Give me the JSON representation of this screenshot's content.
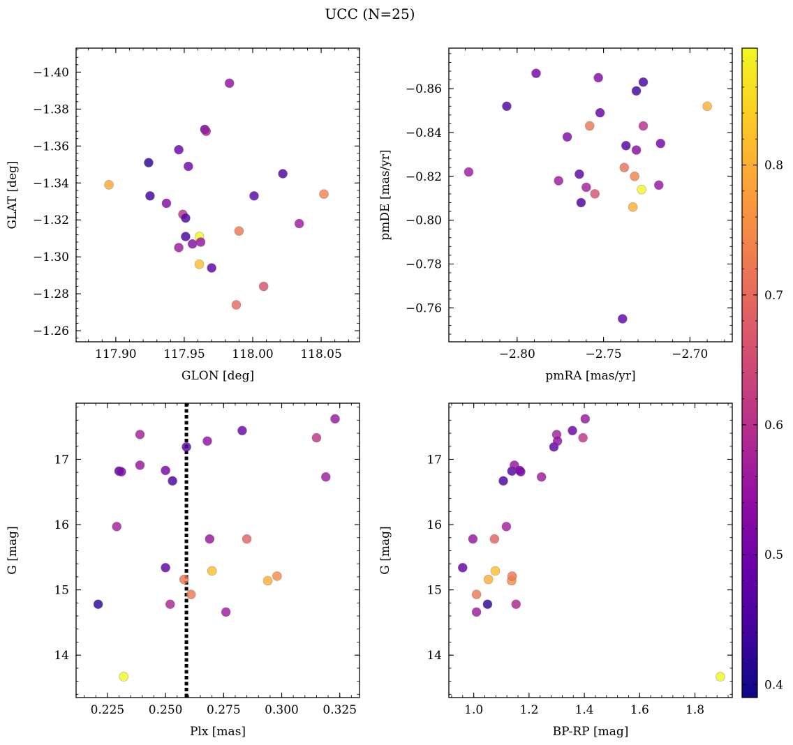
{
  "figure": {
    "title": "UCC (N=25)"
  },
  "colorbar": {
    "colormap": "plasma",
    "range": [
      0.39,
      0.89
    ],
    "ticks": [
      0.4,
      0.5,
      0.6,
      0.7,
      0.8
    ],
    "tick_labels": [
      "0.4",
      "0.5",
      "0.6",
      "0.7",
      "0.8"
    ]
  },
  "chart_data": [
    {
      "type": "scatter",
      "panel": "top-left",
      "xlabel": "GLON [deg]",
      "ylabel": "GLAT [deg]",
      "xlim": [
        117.871,
        118.078
      ],
      "ylim": [
        -1.413,
        -1.254
      ],
      "xticks": [
        117.9,
        117.95,
        118.0,
        118.05
      ],
      "xtick_labels": [
        "117.90",
        "117.95",
        "118.00",
        "118.05"
      ],
      "yticks": [
        -1.4,
        -1.38,
        -1.36,
        -1.34,
        -1.32,
        -1.3,
        -1.28,
        -1.26
      ],
      "ytick_labels": [
        "−1.40",
        "−1.38",
        "−1.36",
        "−1.34",
        "−1.32",
        "−1.30",
        "−1.28",
        "−1.26"
      ],
      "points": [
        {
          "x": 117.895,
          "y": -1.339,
          "c": 0.79
        },
        {
          "x": 117.924,
          "y": -1.351,
          "c": 0.42
        },
        {
          "x": 117.925,
          "y": -1.333,
          "c": 0.44
        },
        {
          "x": 117.937,
          "y": -1.329,
          "c": 0.52
        },
        {
          "x": 117.946,
          "y": -1.305,
          "c": 0.56
        },
        {
          "x": 117.946,
          "y": -1.358,
          "c": 0.49
        },
        {
          "x": 117.949,
          "y": -1.323,
          "c": 0.6
        },
        {
          "x": 117.951,
          "y": -1.321,
          "c": 0.46
        },
        {
          "x": 117.951,
          "y": -1.311,
          "c": 0.45
        },
        {
          "x": 117.953,
          "y": -1.349,
          "c": 0.5
        },
        {
          "x": 117.956,
          "y": -1.307,
          "c": 0.53
        },
        {
          "x": 117.961,
          "y": -1.296,
          "c": 0.82
        },
        {
          "x": 117.961,
          "y": -1.311,
          "c": 0.89
        },
        {
          "x": 117.962,
          "y": -1.308,
          "c": 0.55
        },
        {
          "x": 117.965,
          "y": -1.369,
          "c": 0.48
        },
        {
          "x": 117.966,
          "y": -1.368,
          "c": 0.57
        },
        {
          "x": 117.97,
          "y": -1.294,
          "c": 0.47
        },
        {
          "x": 117.983,
          "y": -1.394,
          "c": 0.54
        },
        {
          "x": 117.988,
          "y": -1.274,
          "c": 0.7
        },
        {
          "x": 117.99,
          "y": -1.314,
          "c": 0.72
        },
        {
          "x": 118.001,
          "y": -1.333,
          "c": 0.47
        },
        {
          "x": 118.008,
          "y": -1.284,
          "c": 0.66
        },
        {
          "x": 118.022,
          "y": -1.345,
          "c": 0.46
        },
        {
          "x": 118.034,
          "y": -1.318,
          "c": 0.56
        },
        {
          "x": 118.052,
          "y": -1.334,
          "c": 0.74
        }
      ]
    },
    {
      "type": "scatter",
      "panel": "top-right",
      "xlabel": "pmRA [mas/yr]",
      "ylabel": "pmDE [mas/yr]",
      "xlim": [
        -2.8395,
        -2.6755
      ],
      "ylim": [
        -0.8785,
        -0.7445
      ],
      "xticks": [
        -2.8,
        -2.75,
        -2.7
      ],
      "xtick_labels": [
        "−2.80",
        "−2.75",
        "−2.70"
      ],
      "yticks": [
        -0.86,
        -0.84,
        -0.82,
        -0.8,
        -0.78,
        -0.76
      ],
      "ytick_labels": [
        "−0.86",
        "−0.84",
        "−0.82",
        "−0.80",
        "−0.78",
        "−0.76"
      ],
      "points": [
        {
          "x": -2.828,
          "y": -0.822,
          "c": 0.56
        },
        {
          "x": -2.806,
          "y": -0.852,
          "c": 0.46
        },
        {
          "x": -2.789,
          "y": -0.867,
          "c": 0.5
        },
        {
          "x": -2.776,
          "y": -0.818,
          "c": 0.56
        },
        {
          "x": -2.771,
          "y": -0.838,
          "c": 0.52
        },
        {
          "x": -2.764,
          "y": -0.821,
          "c": 0.47
        },
        {
          "x": -2.763,
          "y": -0.808,
          "c": 0.45
        },
        {
          "x": -2.76,
          "y": -0.815,
          "c": 0.57
        },
        {
          "x": -2.758,
          "y": -0.843,
          "c": 0.72
        },
        {
          "x": -2.755,
          "y": -0.812,
          "c": 0.66
        },
        {
          "x": -2.753,
          "y": -0.865,
          "c": 0.52
        },
        {
          "x": -2.752,
          "y": -0.849,
          "c": 0.48
        },
        {
          "x": -2.739,
          "y": -0.755,
          "c": 0.48
        },
        {
          "x": -2.738,
          "y": -0.824,
          "c": 0.71
        },
        {
          "x": -2.737,
          "y": -0.834,
          "c": 0.46
        },
        {
          "x": -2.733,
          "y": -0.806,
          "c": 0.8
        },
        {
          "x": -2.732,
          "y": -0.82,
          "c": 0.74
        },
        {
          "x": -2.731,
          "y": -0.832,
          "c": 0.53
        },
        {
          "x": -2.731,
          "y": -0.859,
          "c": 0.44
        },
        {
          "x": -2.728,
          "y": -0.814,
          "c": 0.89
        },
        {
          "x": -2.727,
          "y": -0.843,
          "c": 0.6
        },
        {
          "x": -2.727,
          "y": -0.863,
          "c": 0.45
        },
        {
          "x": -2.718,
          "y": -0.816,
          "c": 0.55
        },
        {
          "x": -2.717,
          "y": -0.835,
          "c": 0.5
        },
        {
          "x": -2.69,
          "y": -0.852,
          "c": 0.8
        }
      ]
    },
    {
      "type": "scatter",
      "panel": "bottom-left",
      "xlabel": "Plx [mas]",
      "ylabel": "G [mag]",
      "xlim": [
        0.2115,
        0.3335
      ],
      "ylim": [
        17.86,
        13.35
      ],
      "xticks": [
        0.225,
        0.25,
        0.275,
        0.3,
        0.325
      ],
      "xtick_labels": [
        "0.225",
        "0.250",
        "0.275",
        "0.300",
        "0.325"
      ],
      "yticks": [
        14,
        15,
        16,
        17
      ],
      "ytick_labels": [
        "14",
        "15",
        "16",
        "17"
      ],
      "reference_line": {
        "x": 0.259,
        "style": "dotted"
      },
      "points": [
        {
          "x": 0.221,
          "y": 14.78,
          "c": 0.42
        },
        {
          "x": 0.229,
          "y": 15.97,
          "c": 0.57
        },
        {
          "x": 0.23,
          "y": 16.82,
          "c": 0.46
        },
        {
          "x": 0.231,
          "y": 16.81,
          "c": 0.52
        },
        {
          "x": 0.232,
          "y": 13.67,
          "c": 0.89
        },
        {
          "x": 0.239,
          "y": 16.91,
          "c": 0.55
        },
        {
          "x": 0.239,
          "y": 17.38,
          "c": 0.57
        },
        {
          "x": 0.25,
          "y": 15.34,
          "c": 0.48
        },
        {
          "x": 0.25,
          "y": 16.83,
          "c": 0.51
        },
        {
          "x": 0.252,
          "y": 14.78,
          "c": 0.58
        },
        {
          "x": 0.253,
          "y": 16.67,
          "c": 0.45
        },
        {
          "x": 0.258,
          "y": 15.16,
          "c": 0.72
        },
        {
          "x": 0.259,
          "y": 17.19,
          "c": 0.47
        },
        {
          "x": 0.261,
          "y": 14.93,
          "c": 0.72
        },
        {
          "x": 0.268,
          "y": 17.28,
          "c": 0.54
        },
        {
          "x": 0.269,
          "y": 15.78,
          "c": 0.55
        },
        {
          "x": 0.27,
          "y": 15.29,
          "c": 0.82
        },
        {
          "x": 0.276,
          "y": 14.66,
          "c": 0.56
        },
        {
          "x": 0.283,
          "y": 17.44,
          "c": 0.49
        },
        {
          "x": 0.285,
          "y": 15.78,
          "c": 0.69
        },
        {
          "x": 0.294,
          "y": 15.14,
          "c": 0.8
        },
        {
          "x": 0.298,
          "y": 15.21,
          "c": 0.75
        },
        {
          "x": 0.315,
          "y": 17.33,
          "c": 0.61
        },
        {
          "x": 0.319,
          "y": 16.73,
          "c": 0.56
        },
        {
          "x": 0.323,
          "y": 17.62,
          "c": 0.55
        }
      ]
    },
    {
      "type": "scatter",
      "panel": "bottom-right",
      "xlabel": "BP-RP [mag]",
      "ylabel": "G [mag]",
      "xlim": [
        0.91,
        1.935
      ],
      "ylim": [
        17.86,
        13.35
      ],
      "xticks": [
        1.0,
        1.2,
        1.4,
        1.6,
        1.8
      ],
      "xtick_labels": [
        "1.0",
        "1.2",
        "1.4",
        "1.6",
        "1.8"
      ],
      "yticks": [
        14,
        15,
        16,
        17
      ],
      "ytick_labels": [
        "14",
        "15",
        "16",
        "17"
      ],
      "points": [
        {
          "x": 0.96,
          "y": 15.34,
          "c": 0.48
        },
        {
          "x": 0.997,
          "y": 15.78,
          "c": 0.55
        },
        {
          "x": 1.01,
          "y": 14.66,
          "c": 0.56
        },
        {
          "x": 1.01,
          "y": 14.93,
          "c": 0.72
        },
        {
          "x": 1.05,
          "y": 14.78,
          "c": 0.42
        },
        {
          "x": 1.053,
          "y": 15.16,
          "c": 0.8
        },
        {
          "x": 1.075,
          "y": 15.78,
          "c": 0.69
        },
        {
          "x": 1.078,
          "y": 15.29,
          "c": 0.82
        },
        {
          "x": 1.107,
          "y": 16.67,
          "c": 0.45
        },
        {
          "x": 1.118,
          "y": 15.97,
          "c": 0.57
        },
        {
          "x": 1.137,
          "y": 15.14,
          "c": 0.75
        },
        {
          "x": 1.138,
          "y": 16.82,
          "c": 0.46
        },
        {
          "x": 1.139,
          "y": 15.21,
          "c": 0.72
        },
        {
          "x": 1.147,
          "y": 16.91,
          "c": 0.55
        },
        {
          "x": 1.153,
          "y": 14.78,
          "c": 0.58
        },
        {
          "x": 1.166,
          "y": 16.83,
          "c": 0.51
        },
        {
          "x": 1.17,
          "y": 16.81,
          "c": 0.52
        },
        {
          "x": 1.245,
          "y": 16.73,
          "c": 0.56
        },
        {
          "x": 1.29,
          "y": 17.19,
          "c": 0.47
        },
        {
          "x": 1.3,
          "y": 17.38,
          "c": 0.57
        },
        {
          "x": 1.303,
          "y": 17.28,
          "c": 0.54
        },
        {
          "x": 1.357,
          "y": 17.44,
          "c": 0.49
        },
        {
          "x": 1.395,
          "y": 17.33,
          "c": 0.61
        },
        {
          "x": 1.403,
          "y": 17.62,
          "c": 0.55
        },
        {
          "x": 1.892,
          "y": 13.67,
          "c": 0.89
        }
      ]
    }
  ]
}
